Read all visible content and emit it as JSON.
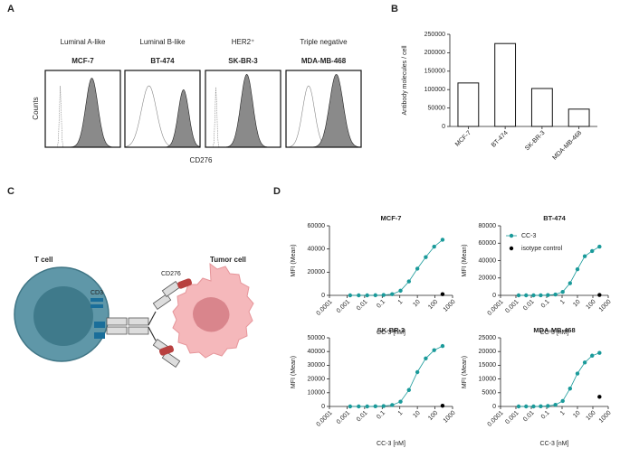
{
  "panel_labels": [
    "A",
    "B",
    "C",
    "D"
  ],
  "panel_a": {
    "ylabel": "Counts",
    "xlabel": "CD276",
    "groups": [
      {
        "subtype": "Luminal A-like",
        "cell_line": "MCF-7"
      },
      {
        "subtype": "Luminal B-like",
        "cell_line": "BT-474"
      },
      {
        "subtype": "HER2⁺",
        "cell_line": "SK-BR-3"
      },
      {
        "subtype": "Triple negative",
        "cell_line": "MDA-MB-468"
      }
    ]
  },
  "panel_c": {
    "t_cell": "T cell",
    "cd3": "CD3",
    "cd276": "CD276",
    "tumor_cell": "Tumor cell"
  },
  "chart_data": [
    {
      "type": "bar",
      "ylabel": "Antibody molecules / cell",
      "categories": [
        "MCF-7",
        "BT-474",
        "SK-BR-3",
        "MDA-MB-468"
      ],
      "values": [
        118000,
        225000,
        103000,
        47000
      ],
      "color": "#ffffff",
      "ylim": [
        0,
        250000
      ],
      "yticks": [
        0,
        50000,
        100000,
        150000,
        200000,
        250000
      ]
    },
    {
      "type": "line",
      "title": "MCF-7",
      "xlabel": "CC-3 [nM]",
      "ylabel": "MFI (Mean)",
      "xscale": "log",
      "xlim": [
        0.0001,
        1000
      ],
      "xticks": [
        0.0001,
        0.001,
        0.01,
        0.1,
        1,
        10,
        100,
        1000
      ],
      "ylim": [
        0,
        60000
      ],
      "yticks": [
        0,
        20000,
        40000,
        60000
      ],
      "series": [
        {
          "color": "#1a9a9a",
          "x": [
            0.0015,
            0.0046,
            0.014,
            0.041,
            0.12,
            0.37,
            1.1,
            3.3,
            10,
            30,
            90,
            270
          ],
          "values": [
            0,
            0,
            0,
            100,
            300,
            1000,
            4000,
            12000,
            23000,
            33000,
            42000,
            48000
          ]
        },
        {
          "color": "#000000",
          "x": [
            270
          ],
          "values": [
            1000
          ]
        }
      ]
    },
    {
      "type": "line",
      "title": "BT-474",
      "xlabel": "CC-3 [nM]",
      "ylabel": "MFI (Mean)",
      "xscale": "log",
      "xlim": [
        0.0001,
        1000
      ],
      "xticks": [
        0.0001,
        0.001,
        0.01,
        0.1,
        1,
        10,
        100,
        1000
      ],
      "ylim": [
        0,
        80000
      ],
      "yticks": [
        0,
        20000,
        40000,
        60000,
        80000
      ],
      "legend": "upper left",
      "series": [
        {
          "name": "CC-3",
          "color": "#1a9a9a",
          "x": [
            0.0015,
            0.0046,
            0.014,
            0.041,
            0.12,
            0.37,
            1.1,
            3.3,
            10,
            30,
            90,
            270
          ],
          "values": [
            0,
            0,
            0,
            100,
            300,
            1000,
            4000,
            14000,
            30000,
            45000,
            51000,
            56000
          ]
        },
        {
          "name": "isotype control",
          "color": "#000000",
          "x": [
            270
          ],
          "values": [
            500
          ]
        }
      ]
    },
    {
      "type": "line",
      "title": "SK-BR-3",
      "xlabel": "CC-3 [nM]",
      "ylabel": "MFI (Mean)",
      "xscale": "log",
      "xlim": [
        0.0001,
        1000
      ],
      "xticks": [
        0.0001,
        0.001,
        0.01,
        0.1,
        1,
        10,
        100,
        1000
      ],
      "ylim": [
        0,
        50000
      ],
      "yticks": [
        0,
        10000,
        20000,
        30000,
        40000,
        50000
      ],
      "series": [
        {
          "color": "#1a9a9a",
          "x": [
            0.0015,
            0.0046,
            0.014,
            0.041,
            0.12,
            0.37,
            1.1,
            3.3,
            10,
            30,
            90,
            270
          ],
          "values": [
            0,
            0,
            0,
            100,
            300,
            1000,
            3500,
            12000,
            25000,
            35000,
            41000,
            44000
          ]
        },
        {
          "color": "#000000",
          "x": [
            270
          ],
          "values": [
            500
          ]
        }
      ]
    },
    {
      "type": "line",
      "title": "MDA-MB-468",
      "xlabel": "CC-3 [nM]",
      "ylabel": "MFI (Mean)",
      "xscale": "log",
      "xlim": [
        0.0001,
        1000
      ],
      "xticks": [
        0.0001,
        0.001,
        0.01,
        0.1,
        1,
        10,
        100,
        1000
      ],
      "ylim": [
        0,
        25000
      ],
      "yticks": [
        0,
        5000,
        10000,
        15000,
        20000,
        25000
      ],
      "series": [
        {
          "color": "#1a9a9a",
          "x": [
            0.0015,
            0.0046,
            0.014,
            0.041,
            0.12,
            0.37,
            1.1,
            3.3,
            10,
            30,
            90,
            270
          ],
          "values": [
            0,
            0,
            0,
            50,
            200,
            600,
            2000,
            6500,
            12000,
            16000,
            18500,
            19500
          ]
        },
        {
          "color": "#000000",
          "x": [
            270
          ],
          "values": [
            3500
          ]
        }
      ]
    }
  ]
}
